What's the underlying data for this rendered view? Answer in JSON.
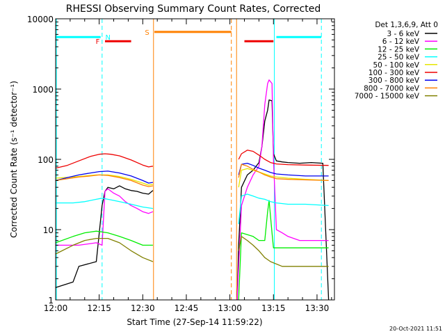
{
  "chart_data": {
    "type": "line",
    "title": "RHESSI Observing Summary Count Rates, Corrected",
    "xlabel": "Start Time (27-Sep-14 11:59:22)",
    "ylabel": "Corrected Count Rate (s⁻¹ detector⁻¹)",
    "x_unit": "minutes after 12:00 UT",
    "xlim": [
      0,
      96
    ],
    "ylim": [
      1,
      10000
    ],
    "y_scale": "log",
    "x_ticks": [
      {
        "t": 0,
        "label": "12:00"
      },
      {
        "t": 15,
        "label": "12:15"
      },
      {
        "t": 30,
        "label": "12:30"
      },
      {
        "t": 45,
        "label": "12:45"
      },
      {
        "t": 60,
        "label": "13:00"
      },
      {
        "t": 75,
        "label": "13:15"
      },
      {
        "t": 90,
        "label": "13:30"
      }
    ],
    "y_ticks": [
      {
        "v": 1,
        "label": "1"
      },
      {
        "v": 10,
        "label": "10"
      },
      {
        "v": 100,
        "label": "100"
      },
      {
        "v": 1000,
        "label": "1000"
      },
      {
        "v": 10000,
        "label": "10000"
      }
    ],
    "legend": {
      "position": "right",
      "header": "Det 1,3,6,9, Att 0",
      "entries": [
        {
          "label": "3 - 6 keV",
          "color": "#000000"
        },
        {
          "label": "6 - 12 keV",
          "color": "#ff00ff"
        },
        {
          "label": "12 - 25 keV",
          "color": "#00ee00"
        },
        {
          "label": "25 - 50 keV",
          "color": "#00ffff"
        },
        {
          "label": "50 - 100 keV",
          "color": "#e6e600"
        },
        {
          "label": "100 - 300 keV",
          "color": "#ee0000"
        },
        {
          "label": "300 - 800 keV",
          "color": "#0000ee"
        },
        {
          "label": "800 - 7000 keV",
          "color": "#ff8000"
        },
        {
          "label": "7000 - 15000 keV",
          "color": "#808000"
        }
      ]
    },
    "series": [
      {
        "name": "3 - 6 keV",
        "color": "#000000",
        "segments": [
          [
            [
              0,
              1.5
            ],
            [
              6,
              1.8
            ],
            [
              8,
              3
            ],
            [
              14,
              3.5
            ],
            [
              16,
              22
            ],
            [
              17,
              35
            ],
            [
              18,
              40
            ],
            [
              20,
              38
            ],
            [
              22,
              42
            ],
            [
              24,
              38
            ],
            [
              26,
              36
            ],
            [
              28,
              35
            ],
            [
              30,
              33
            ],
            [
              32,
              32
            ],
            [
              33.5,
              36
            ]
          ],
          [
            [
              62.5,
              1
            ],
            [
              63,
              6
            ],
            [
              64,
              40
            ],
            [
              66,
              60
            ],
            [
              68,
              70
            ],
            [
              70,
              90
            ],
            [
              71,
              150
            ],
            [
              72,
              350
            ],
            [
              73,
              500
            ],
            [
              73.5,
              700
            ],
            [
              74.5,
              680
            ],
            [
              75,
              120
            ],
            [
              76,
              95
            ],
            [
              78,
              92
            ],
            [
              80,
              90
            ],
            [
              84,
              88
            ],
            [
              88,
              90
            ],
            [
              92,
              88
            ],
            [
              94,
              1
            ]
          ]
        ]
      },
      {
        "name": "6 - 12 keV",
        "color": "#ff00ff",
        "segments": [
          [
            [
              0,
              6
            ],
            [
              8,
              6
            ],
            [
              14,
              6.5
            ],
            [
              16,
              6
            ],
            [
              17,
              35
            ],
            [
              18,
              38
            ],
            [
              20,
              33
            ],
            [
              22,
              30
            ],
            [
              24,
              25
            ],
            [
              26,
              22
            ],
            [
              28,
              20
            ],
            [
              30,
              18
            ],
            [
              32,
              17
            ],
            [
              33.5,
              18
            ]
          ],
          [
            [
              62.5,
              1
            ],
            [
              63,
              3
            ],
            [
              64,
              22
            ],
            [
              66,
              40
            ],
            [
              68,
              60
            ],
            [
              70,
              80
            ],
            [
              71,
              150
            ],
            [
              72,
              600
            ],
            [
              73,
              1200
            ],
            [
              73.5,
              1350
            ],
            [
              74.5,
              1200
            ],
            [
              75,
              100
            ],
            [
              76,
              10
            ],
            [
              78,
              9
            ],
            [
              80,
              8
            ],
            [
              84,
              7
            ],
            [
              88,
              7
            ],
            [
              92,
              7
            ],
            [
              94,
              7
            ]
          ]
        ]
      },
      {
        "name": "12 - 25 keV",
        "color": "#00ee00",
        "segments": [
          [
            [
              0,
              6.5
            ],
            [
              6,
              8
            ],
            [
              10,
              9
            ],
            [
              14,
              9.5
            ],
            [
              18,
              9
            ],
            [
              22,
              8
            ],
            [
              26,
              7
            ],
            [
              30,
              6
            ],
            [
              33.5,
              6
            ]
          ],
          [
            [
              63,
              1
            ],
            [
              64,
              9
            ],
            [
              68,
              8
            ],
            [
              70,
              7
            ],
            [
              72,
              7
            ],
            [
              73,
              18
            ],
            [
              73.5,
              26
            ],
            [
              74.5,
              9
            ],
            [
              75,
              5.5
            ],
            [
              80,
              5.5
            ],
            [
              86,
              5.5
            ],
            [
              94,
              5.5
            ]
          ]
        ]
      },
      {
        "name": "25 - 50 keV",
        "color": "#00ffff",
        "segments": [
          [
            [
              0,
              24
            ],
            [
              6,
              24
            ],
            [
              10,
              25
            ],
            [
              14,
              27
            ],
            [
              16,
              28
            ],
            [
              18,
              27
            ],
            [
              22,
              25
            ],
            [
              26,
              23
            ],
            [
              30,
              21
            ],
            [
              33.5,
              20
            ]
          ],
          [
            [
              63,
              12
            ],
            [
              64,
              30
            ],
            [
              66,
              32
            ],
            [
              68,
              30
            ],
            [
              70,
              28
            ],
            [
              72,
              27
            ],
            [
              74,
              25
            ],
            [
              76,
              24
            ],
            [
              80,
              23
            ],
            [
              86,
              23
            ],
            [
              94,
              22
            ]
          ]
        ]
      },
      {
        "name": "50 - 100 keV",
        "color": "#e6e600",
        "segments": [
          [
            [
              0,
              54
            ],
            [
              6,
              56
            ],
            [
              10,
              58
            ],
            [
              14,
              60
            ],
            [
              16,
              60
            ],
            [
              18,
              60
            ],
            [
              22,
              57
            ],
            [
              26,
              52
            ],
            [
              30,
              46
            ],
            [
              32,
              43
            ],
            [
              33.5,
              44
            ]
          ],
          [
            [
              63,
              40
            ],
            [
              64,
              70
            ],
            [
              66,
              74
            ],
            [
              68,
              70
            ],
            [
              70,
              66
            ],
            [
              72,
              62
            ],
            [
              74,
              58
            ],
            [
              76,
              56
            ],
            [
              80,
              54
            ],
            [
              86,
              52
            ],
            [
              94,
              50
            ]
          ]
        ]
      },
      {
        "name": "100 - 300 keV",
        "color": "#ee0000",
        "segments": [
          [
            [
              0,
              75
            ],
            [
              4,
              82
            ],
            [
              8,
              95
            ],
            [
              12,
              110
            ],
            [
              15,
              118
            ],
            [
              17,
              120
            ],
            [
              19,
              118
            ],
            [
              22,
              112
            ],
            [
              26,
              98
            ],
            [
              30,
              83
            ],
            [
              32,
              78
            ],
            [
              33.5,
              80
            ]
          ],
          [
            [
              63,
              100
            ],
            [
              64,
              120
            ],
            [
              66,
              135
            ],
            [
              68,
              130
            ],
            [
              70,
              115
            ],
            [
              72,
              100
            ],
            [
              74,
              90
            ],
            [
              76,
              86
            ],
            [
              80,
              84
            ],
            [
              86,
              83
            ],
            [
              94,
              82
            ]
          ]
        ]
      },
      {
        "name": "300 - 800 keV",
        "color": "#0000ee",
        "segments": [
          [
            [
              0,
              50
            ],
            [
              4,
              55
            ],
            [
              8,
              60
            ],
            [
              12,
              64
            ],
            [
              15,
              67
            ],
            [
              18,
              68
            ],
            [
              22,
              64
            ],
            [
              26,
              58
            ],
            [
              30,
              50
            ],
            [
              32,
              46
            ],
            [
              33.5,
              47
            ]
          ],
          [
            [
              63,
              60
            ],
            [
              64,
              85
            ],
            [
              66,
              88
            ],
            [
              68,
              82
            ],
            [
              70,
              75
            ],
            [
              72,
              70
            ],
            [
              74,
              65
            ],
            [
              76,
              62
            ],
            [
              80,
              60
            ],
            [
              86,
              58
            ],
            [
              94,
              58
            ]
          ]
        ]
      },
      {
        "name": "800 - 7000 keV",
        "color": "#ff8000",
        "segments": [
          [
            [
              0,
              50
            ],
            [
              4,
              53
            ],
            [
              8,
              56
            ],
            [
              12,
              58
            ],
            [
              15,
              60
            ],
            [
              18,
              59
            ],
            [
              22,
              55
            ],
            [
              26,
              50
            ],
            [
              30,
              43
            ],
            [
              32,
              41
            ],
            [
              33.5,
              42
            ]
          ],
          [
            [
              63,
              55
            ],
            [
              64,
              85
            ],
            [
              66,
              80
            ],
            [
              68,
              72
            ],
            [
              70,
              66
            ],
            [
              72,
              60
            ],
            [
              74,
              56
            ],
            [
              76,
              53
            ],
            [
              80,
              52
            ],
            [
              86,
              51
            ],
            [
              94,
              50
            ]
          ]
        ]
      },
      {
        "name": "7000 - 15000 keV",
        "color": "#808000",
        "segments": [
          [
            [
              0,
              4.5
            ],
            [
              6,
              6
            ],
            [
              10,
              7
            ],
            [
              14,
              7.5
            ],
            [
              18,
              7.5
            ],
            [
              22,
              6.5
            ],
            [
              26,
              5
            ],
            [
              30,
              4
            ],
            [
              33.5,
              3.5
            ]
          ],
          [
            [
              63,
              5
            ],
            [
              64,
              8
            ],
            [
              66,
              7
            ],
            [
              68,
              6
            ],
            [
              70,
              5
            ],
            [
              72,
              4
            ],
            [
              74,
              3.5
            ],
            [
              78,
              3
            ],
            [
              86,
              3
            ],
            [
              94,
              3
            ]
          ]
        ]
      }
    ],
    "annotation_bars": [
      {
        "letter": "N",
        "color": "#00ffff",
        "level": 5500,
        "ranges": [
          [
            0,
            15.5
          ],
          [
            76,
            91.5
          ]
        ],
        "label_at": 18
      },
      {
        "letter": "F",
        "color": "#ee0000",
        "level": 4800,
        "ranges": [
          [
            17,
            26
          ],
          [
            65,
            75
          ]
        ],
        "label_at": 14.5
      },
      {
        "letter": "S",
        "color": "#ff8000",
        "level": 6500,
        "ranges": [
          [
            34,
            60.5
          ]
        ],
        "label_at": 31.5
      }
    ],
    "vertical_lines": [
      {
        "t": 0.3,
        "color": "#00ffff",
        "style": "solid"
      },
      {
        "t": 16,
        "color": "#00ffff",
        "style": "dashed"
      },
      {
        "t": 33.7,
        "color": "#ff8000",
        "style": "solid"
      },
      {
        "t": 60.5,
        "color": "#ff8000",
        "style": "dashed"
      },
      {
        "t": 62.3,
        "color": "#ff8000",
        "style": "solid"
      },
      {
        "t": 75.3,
        "color": "#00ffff",
        "style": "solid"
      },
      {
        "t": 91.5,
        "color": "#00ffff",
        "style": "dashed"
      }
    ]
  },
  "footer": {
    "date_stamp": "20-Oct-2021 11:51"
  }
}
